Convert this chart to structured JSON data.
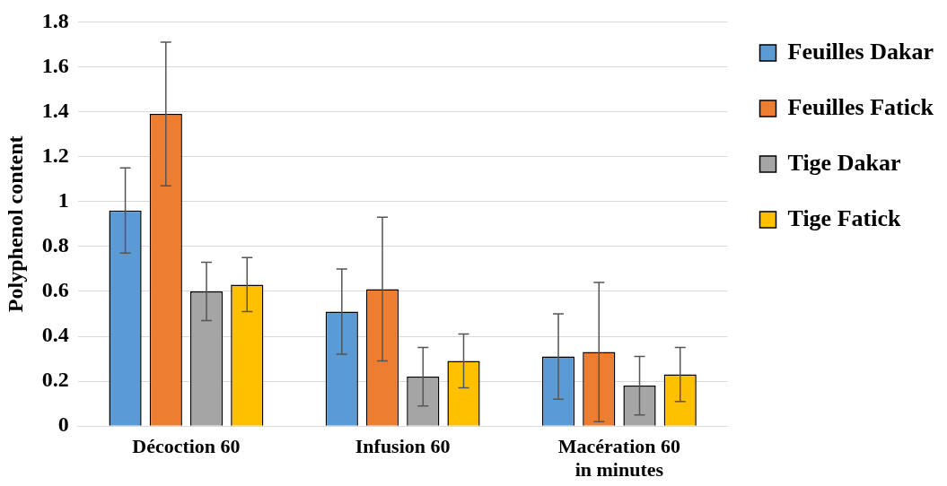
{
  "chart_data": {
    "type": "bar",
    "ylabel": "Polyphenol content",
    "categories": [
      "Décoction 60",
      "Infusion 60",
      "Macération 60\nin minutes"
    ],
    "series": [
      {
        "name": "Feuilles Dakar",
        "color": "#5b9bd5",
        "values": [
          0.96,
          0.51,
          0.31
        ],
        "errors": [
          0.19,
          0.19,
          0.19
        ]
      },
      {
        "name": "Feuilles Fatick",
        "color": "#ed7d31",
        "values": [
          1.39,
          0.61,
          0.33
        ],
        "errors": [
          0.32,
          0.32,
          0.31
        ]
      },
      {
        "name": "Tige Dakar",
        "color": "#a5a5a5",
        "values": [
          0.6,
          0.22,
          0.18
        ],
        "errors": [
          0.13,
          0.13,
          0.13
        ]
      },
      {
        "name": "Tige Fatick",
        "color": "#ffc000",
        "values": [
          0.63,
          0.29,
          0.23
        ],
        "errors": [
          0.12,
          0.12,
          0.12
        ]
      }
    ],
    "ylim": [
      0,
      1.8
    ],
    "yticks": [
      0,
      0.2,
      0.4,
      0.6,
      0.8,
      1,
      1.2,
      1.4,
      1.6,
      1.8
    ],
    "grid": "y",
    "legend": "right"
  }
}
